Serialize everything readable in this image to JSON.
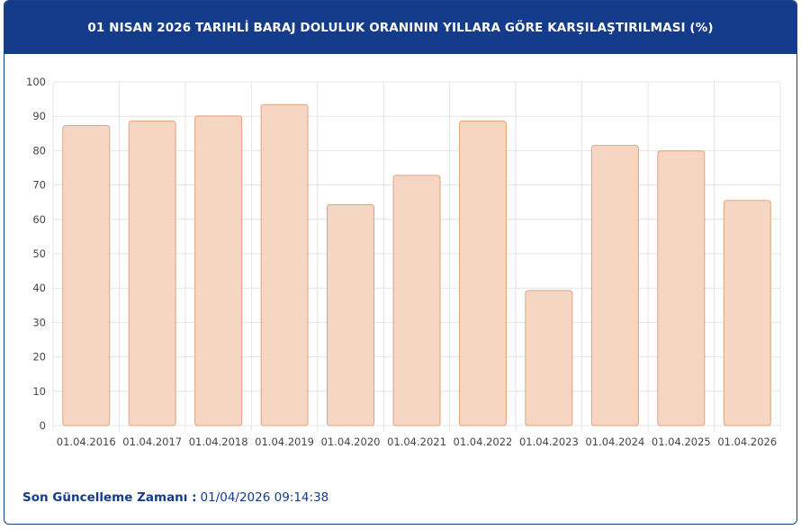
{
  "header": {
    "title": "01 NISAN 2026 TARIHLİ BARAJ DOLULUK ORANININ YILLARA GÖRE KARŞILAŞTIRILMASI (%)"
  },
  "footer": {
    "label": "Son Güncelleme Zamanı :",
    "value": "01/04/2026 09:14:38"
  },
  "colors": {
    "header_bg": "#143c8a",
    "bar_fill": "#f4d6c3",
    "bar_stroke": "#e2a27d",
    "grid": "#e4e4e4"
  },
  "chart_data": {
    "type": "bar",
    "categories": [
      "01.04.2016",
      "01.04.2017",
      "01.04.2018",
      "01.04.2019",
      "01.04.2020",
      "01.04.2021",
      "01.04.2022",
      "01.04.2023",
      "01.04.2024",
      "01.04.2025",
      "01.04.2026"
    ],
    "values": [
      87.3,
      88.6,
      90.1,
      93.4,
      64.3,
      72.8,
      88.6,
      39.3,
      81.5,
      79.9,
      65.5
    ],
    "ylim": [
      0,
      100
    ],
    "yticks": [
      "0",
      "10",
      "20",
      "30",
      "40",
      "50",
      "60",
      "70",
      "80",
      "90",
      "100"
    ],
    "grid": true
  }
}
